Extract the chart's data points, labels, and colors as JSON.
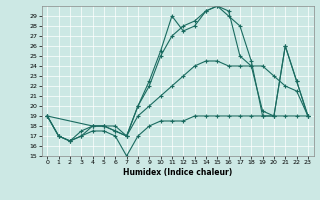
{
  "xlabel": "Humidex (Indice chaleur)",
  "bg_color": "#cce8e4",
  "grid_color": "#b0d8d4",
  "line_color": "#1a6b60",
  "xlim": [
    -0.5,
    23.5
  ],
  "ylim": [
    15,
    30
  ],
  "yticks": [
    15,
    16,
    17,
    18,
    19,
    20,
    21,
    22,
    23,
    24,
    25,
    26,
    27,
    28,
    29
  ],
  "xticks": [
    0,
    1,
    2,
    3,
    4,
    5,
    6,
    7,
    8,
    9,
    10,
    11,
    12,
    13,
    14,
    15,
    16,
    17,
    18,
    19,
    20,
    21,
    22,
    23
  ],
  "lines": [
    {
      "x": [
        0,
        1,
        2,
        3,
        4,
        5,
        6,
        7,
        8,
        9,
        10,
        11,
        12,
        13,
        14,
        15,
        16,
        17,
        18,
        19,
        20,
        21,
        22,
        23
      ],
      "y": [
        19,
        17,
        16.5,
        17,
        17.5,
        17.5,
        17,
        15,
        17,
        18,
        18.5,
        18.5,
        18.5,
        19,
        19,
        19,
        19,
        19,
        19,
        19,
        19,
        19,
        19,
        19
      ]
    },
    {
      "x": [
        0,
        1,
        2,
        3,
        4,
        5,
        6,
        7,
        8,
        9,
        10,
        11,
        12,
        13,
        14,
        15,
        16,
        17,
        18,
        19,
        20,
        21,
        22,
        23
      ],
      "y": [
        19,
        17,
        16.5,
        17,
        18,
        18,
        17.5,
        17,
        19,
        20,
        21,
        22,
        23,
        24,
        24.5,
        24.5,
        24,
        24,
        24,
        24,
        23,
        22,
        21.5,
        19
      ]
    },
    {
      "x": [
        0,
        4,
        5,
        6,
        7,
        8,
        9,
        10,
        11,
        12,
        13,
        14,
        15,
        16,
        17,
        18,
        19,
        20,
        21,
        22,
        23
      ],
      "y": [
        19,
        18,
        18,
        18,
        17,
        20,
        22.5,
        25.5,
        29,
        27.5,
        28,
        29.5,
        30,
        29.5,
        25,
        24,
        19.5,
        19,
        26,
        22.5,
        19
      ]
    },
    {
      "x": [
        0,
        1,
        2,
        3,
        4,
        5,
        6,
        7,
        8,
        9,
        10,
        11,
        12,
        13,
        14,
        15,
        16,
        17,
        18,
        19,
        20,
        21,
        22,
        23
      ],
      "y": [
        19,
        17,
        16.5,
        17.5,
        18,
        18,
        17.5,
        17,
        20,
        22,
        25,
        27,
        28,
        28.5,
        29.5,
        30,
        29,
        28,
        24.5,
        19,
        19,
        26,
        22.5,
        19
      ]
    }
  ]
}
